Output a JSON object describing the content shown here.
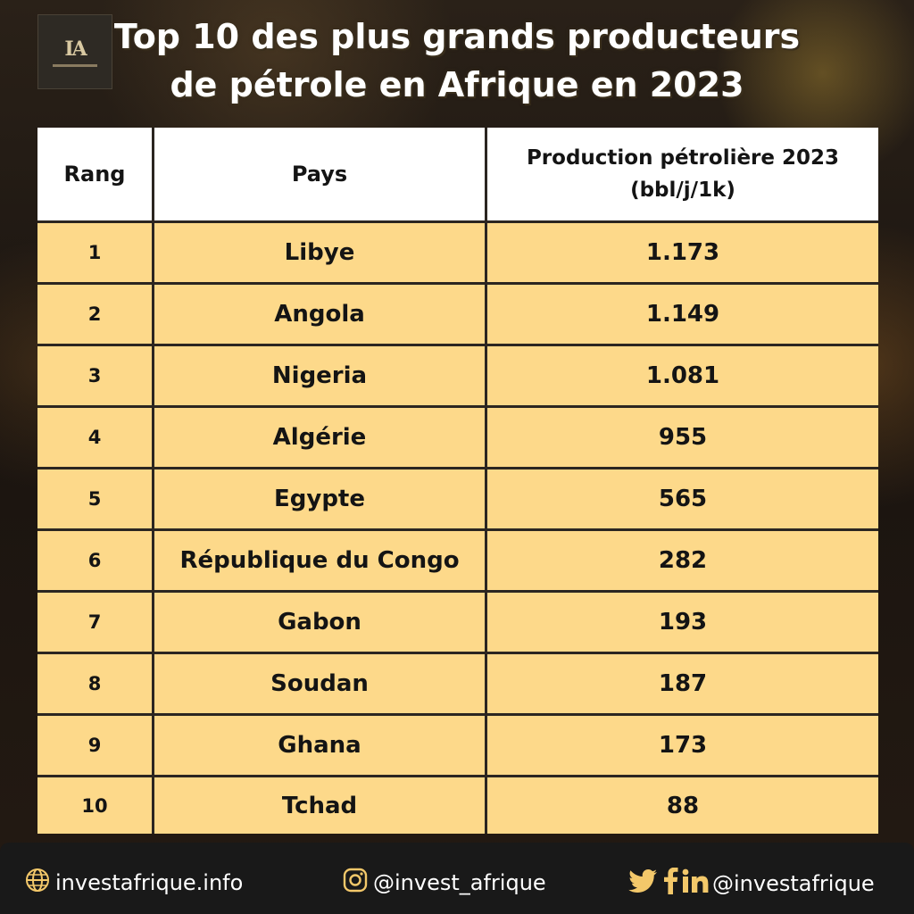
{
  "header": {
    "logo_text": "IA",
    "title_line1": "Top 10 des plus grands producteurs",
    "title_line2": "de pétrole en Afrique en 2023"
  },
  "table": {
    "columns": [
      "Rang",
      "Pays",
      "Production pétrolière 2023",
      "(bbl/j/1k)"
    ],
    "rows": [
      {
        "rank": "1",
        "country": "Libye",
        "value": "1.173"
      },
      {
        "rank": "2",
        "country": "Angola",
        "value": "1.149"
      },
      {
        "rank": "3",
        "country": "Nigeria",
        "value": "1.081"
      },
      {
        "rank": "4",
        "country": "Algérie",
        "value": "955"
      },
      {
        "rank": "5",
        "country": "Egypte",
        "value": "565"
      },
      {
        "rank": "6",
        "country": "République du Congo",
        "value": "282"
      },
      {
        "rank": "7",
        "country": "Gabon",
        "value": "193"
      },
      {
        "rank": "8",
        "country": "Soudan",
        "value": "187"
      },
      {
        "rank": "9",
        "country": "Ghana",
        "value": "173"
      },
      {
        "rank": "10",
        "country": "Tchad",
        "value": "88"
      }
    ]
  },
  "footer": {
    "website": "investafrique.info",
    "instagram": "@invest_afrique",
    "social": "@investafrique",
    "icons": [
      "globe-icon",
      "instagram-icon",
      "twitter-icon",
      "facebook-icon",
      "linkedin-icon"
    ]
  },
  "colors": {
    "row_fill": "#fdd98a",
    "header_fill": "#ffffff",
    "icon_gold": "#f3c86a",
    "footer_bg": "#191919"
  }
}
